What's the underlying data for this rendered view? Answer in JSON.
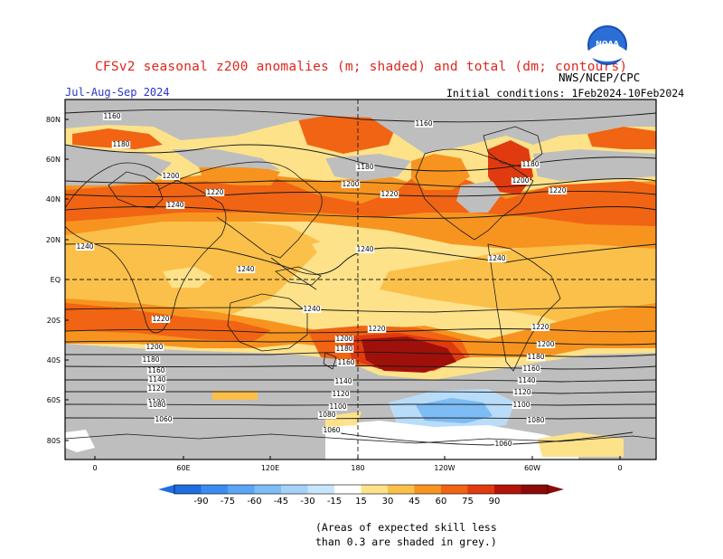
{
  "title": "CFSv2 seasonal z200 anomalies (m; shaded) and total (dm; contours)",
  "period": "Jul-Aug-Sep 2024",
  "agency": "NWS/NCEP/CPC",
  "logo_text": "NOAA",
  "initial_conditions": "Initial conditions: 1Feb2024-10Feb2024",
  "lat_labels": [
    "80N",
    "60N",
    "40N",
    "20N",
    "EQ",
    "20S",
    "40S",
    "60S",
    "80S"
  ],
  "lon_labels": [
    "0",
    "60E",
    "120E",
    "180",
    "120W",
    "60W",
    "0"
  ],
  "contour_levels": [
    "1160",
    "1180",
    "1200",
    "1220",
    "1240",
    "1240",
    "1220",
    "1200",
    "1180",
    "1160",
    "1140",
    "1120",
    "1100",
    "1080",
    "1060"
  ],
  "colorbar": {
    "ticks": [
      "-90",
      "-75",
      "-60",
      "-45",
      "-30",
      "-15",
      "15",
      "30",
      "45",
      "60",
      "75",
      "90"
    ],
    "colors": [
      "#1e6ee0",
      "#3c8cf0",
      "#5aa5f5",
      "#7dbcf5",
      "#a5d2f8",
      "#c8e6fb",
      "#ffffff",
      "#fde28a",
      "#fbc04a",
      "#f7941f",
      "#f06414",
      "#e03a0f",
      "#b4140a",
      "#8c0a08"
    ]
  },
  "note": {
    "line1": "(Areas of expected skill less",
    "line2": "than 0.3 are shaded in grey.)"
  },
  "map_colors": {
    "grey": "#bebebe",
    "pale": "#fde28a",
    "light_orange": "#fbc04a",
    "orange": "#f7941f",
    "red_orange": "#f06414",
    "red": "#e03a0f",
    "dark_red": "#a0100a",
    "light_blue": "#b9dcf8",
    "blue": "#7dbcf5",
    "white": "#ffffff"
  }
}
